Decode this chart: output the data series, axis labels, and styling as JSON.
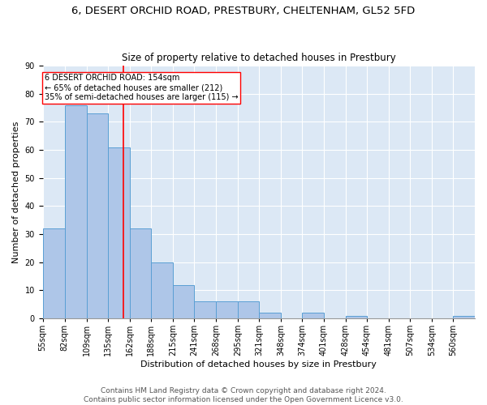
{
  "title1": "6, DESERT ORCHID ROAD, PRESTBURY, CHELTENHAM, GL52 5FD",
  "title2": "Size of property relative to detached houses in Prestbury",
  "xlabel": "Distribution of detached houses by size in Prestbury",
  "ylabel": "Number of detached properties",
  "bar_edges": [
    55,
    82,
    109,
    135,
    162,
    188,
    215,
    241,
    268,
    295,
    321,
    348,
    374,
    401,
    428,
    454,
    481,
    507,
    534,
    560,
    587
  ],
  "bar_heights": [
    32,
    76,
    73,
    61,
    32,
    20,
    12,
    6,
    6,
    6,
    2,
    0,
    2,
    0,
    1,
    0,
    0,
    0,
    0,
    1
  ],
  "bar_color": "#aec6e8",
  "bar_edge_color": "#5a9fd4",
  "vline_x": 154,
  "vline_color": "red",
  "annotation_text": "6 DESERT ORCHID ROAD: 154sqm\n← 65% of detached houses are smaller (212)\n35% of semi-detached houses are larger (115) →",
  "annotation_box_color": "white",
  "annotation_box_edge_color": "red",
  "ylim": [
    0,
    90
  ],
  "yticks": [
    0,
    10,
    20,
    30,
    40,
    50,
    60,
    70,
    80,
    90
  ],
  "bg_color": "#dce8f5",
  "grid_color": "white",
  "footer": "Contains HM Land Registry data © Crown copyright and database right 2024.\nContains public sector information licensed under the Open Government Licence v3.0.",
  "title1_fontsize": 9.5,
  "title2_fontsize": 8.5,
  "xlabel_fontsize": 8,
  "ylabel_fontsize": 8,
  "tick_fontsize": 7,
  "footer_fontsize": 6.5,
  "annot_fontsize": 7
}
